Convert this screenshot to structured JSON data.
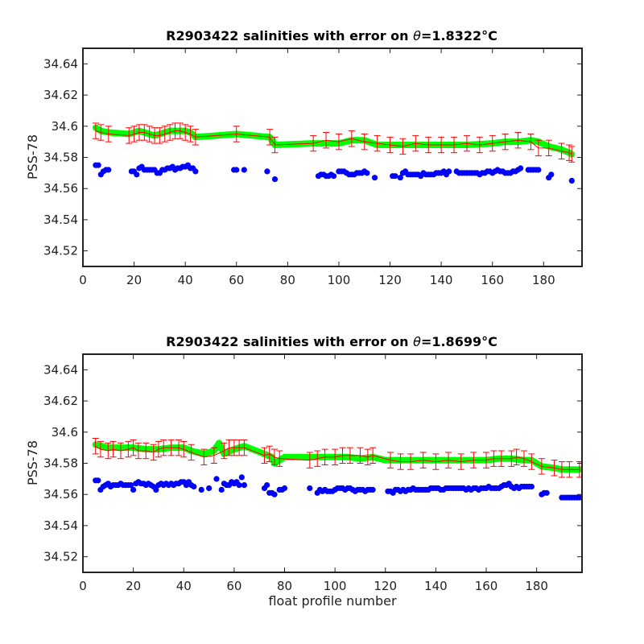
{
  "chart_data": [
    {
      "type": "scatter",
      "title_prefix": "R2903422 salinities with error on ",
      "title_theta": "θ",
      "title_value": "=1.8322",
      "title_unit": "°C",
      "xlabel": "",
      "ylabel": "PSS-78",
      "xlim": [
        0,
        195
      ],
      "ylim": [
        34.51,
        34.65
      ],
      "xticks": [
        "0",
        "20",
        "40",
        "60",
        "80",
        "100",
        "120",
        "140",
        "160",
        "180"
      ],
      "yticks": [
        "34.52",
        "34.54",
        "34.56",
        "34.58",
        "34.6",
        "34.62",
        "34.64"
      ],
      "grid": false,
      "series": [
        {
          "role": "float-salinity",
          "color": "#0000ff",
          "x": [
            5,
            6,
            7,
            8,
            9,
            10,
            19,
            20,
            21,
            22,
            23,
            24,
            25,
            26,
            27,
            28,
            29,
            30,
            31,
            32,
            33,
            34,
            35,
            36,
            37,
            38,
            39,
            40,
            41,
            42,
            43,
            44,
            59,
            60,
            63,
            72,
            75,
            92,
            93,
            94,
            95,
            96,
            97,
            98,
            100,
            101,
            102,
            103,
            104,
            105,
            106,
            107,
            108,
            109,
            110,
            111,
            114,
            121,
            122,
            124,
            125,
            126,
            127,
            128,
            129,
            130,
            131,
            132,
            133,
            134,
            135,
            136,
            137,
            138,
            139,
            140,
            141,
            142,
            143,
            146,
            147,
            148,
            149,
            150,
            151,
            152,
            153,
            154,
            155,
            156,
            157,
            158,
            159,
            160,
            161,
            162,
            163,
            164,
            165,
            166,
            167,
            168,
            169,
            170,
            171,
            174,
            175,
            176,
            177,
            178,
            182,
            183,
            191
          ],
          "y": [
            34.575,
            34.575,
            34.569,
            34.571,
            34.572,
            34.572,
            34.571,
            34.571,
            34.569,
            34.573,
            34.574,
            34.572,
            34.572,
            34.572,
            34.572,
            34.572,
            34.57,
            34.57,
            34.572,
            34.572,
            34.573,
            34.573,
            34.574,
            34.572,
            34.573,
            34.573,
            34.574,
            34.574,
            34.575,
            34.573,
            34.573,
            34.571,
            34.572,
            34.572,
            34.572,
            34.571,
            34.566,
            34.568,
            34.569,
            34.569,
            34.568,
            34.568,
            34.569,
            34.568,
            34.571,
            34.571,
            34.571,
            34.57,
            34.569,
            34.569,
            34.569,
            34.57,
            34.57,
            34.57,
            34.571,
            34.57,
            34.567,
            34.568,
            34.568,
            34.567,
            34.57,
            34.571,
            34.569,
            34.569,
            34.569,
            34.569,
            34.569,
            34.568,
            34.57,
            34.569,
            34.569,
            34.569,
            34.569,
            34.57,
            34.57,
            34.57,
            34.571,
            34.569,
            34.571,
            34.571,
            34.57,
            34.57,
            34.57,
            34.57,
            34.57,
            34.57,
            34.57,
            34.57,
            34.569,
            34.57,
            34.57,
            34.571,
            34.571,
            34.57,
            34.571,
            34.572,
            34.571,
            34.571,
            34.57,
            34.57,
            34.57,
            34.571,
            34.571,
            34.572,
            34.573,
            34.572,
            34.572,
            34.572,
            34.572,
            34.572,
            34.567,
            34.569,
            34.565
          ]
        },
        {
          "role": "mapped-salinity",
          "color": "#00ff00",
          "x": [
            5,
            7,
            10,
            18,
            20,
            22,
            24,
            26,
            28,
            30,
            32,
            34,
            36,
            38,
            40,
            42,
            44,
            60,
            73,
            75,
            90,
            100,
            105,
            110,
            115,
            120,
            130,
            140,
            150,
            160,
            165,
            170,
            175,
            178,
            182,
            187,
            190,
            191
          ],
          "y": [
            34.599,
            34.597,
            34.596,
            34.595,
            34.596,
            34.597,
            34.596,
            34.595,
            34.594,
            34.595,
            34.596,
            34.597,
            34.597,
            34.597,
            34.597,
            34.596,
            34.593,
            34.595,
            34.593,
            34.588,
            34.589,
            34.589,
            34.591,
            34.591,
            34.588,
            34.588,
            34.588,
            34.588,
            34.588,
            34.589,
            34.59,
            34.59,
            34.591,
            34.59,
            34.587,
            34.585,
            34.583,
            34.582
          ]
        },
        {
          "role": "calibrated-salinity",
          "color": "#ff0000",
          "errorbar": 0.005,
          "x": [
            5,
            7,
            10,
            18,
            20,
            22,
            24,
            26,
            28,
            30,
            32,
            34,
            36,
            38,
            40,
            42,
            44,
            60,
            73,
            75,
            90,
            95,
            100,
            105,
            110,
            115,
            120,
            125,
            130,
            135,
            140,
            145,
            150,
            155,
            160,
            165,
            170,
            175,
            178,
            182,
            187,
            190,
            191
          ],
          "y": [
            34.597,
            34.596,
            34.595,
            34.594,
            34.595,
            34.596,
            34.596,
            34.595,
            34.594,
            34.594,
            34.595,
            34.596,
            34.597,
            34.597,
            34.596,
            34.595,
            34.593,
            34.595,
            34.593,
            34.588,
            34.589,
            34.591,
            34.59,
            34.592,
            34.59,
            34.589,
            34.588,
            34.587,
            34.589,
            34.588,
            34.588,
            34.588,
            34.589,
            34.588,
            34.589,
            34.59,
            34.591,
            34.59,
            34.586,
            34.586,
            34.584,
            34.583,
            34.582
          ]
        }
      ]
    },
    {
      "type": "scatter",
      "title_prefix": "R2903422 salinities with error on ",
      "title_theta": "θ",
      "title_value": "=1.8699",
      "title_unit": "°C",
      "xlabel": "float profile number",
      "ylabel": "PSS-78",
      "xlim": [
        0,
        198
      ],
      "ylim": [
        34.51,
        34.65
      ],
      "xticks": [
        "0",
        "20",
        "40",
        "60",
        "80",
        "100",
        "120",
        "140",
        "160",
        "180"
      ],
      "yticks": [
        "34.52",
        "34.54",
        "34.56",
        "34.58",
        "34.6",
        "34.62",
        "34.64"
      ],
      "grid": false,
      "series": [
        {
          "role": "float-salinity",
          "color": "#0000ff",
          "x": [
            5,
            6,
            7,
            8,
            9,
            10,
            11,
            12,
            13,
            14,
            15,
            16,
            17,
            18,
            19,
            20,
            21,
            22,
            23,
            24,
            25,
            26,
            27,
            28,
            29,
            30,
            31,
            32,
            33,
            34,
            35,
            36,
            37,
            38,
            39,
            40,
            41,
            42,
            43,
            44,
            47,
            50,
            53,
            55,
            56,
            57,
            58,
            59,
            60,
            61,
            62,
            63,
            64,
            72,
            73,
            74,
            75,
            76,
            78,
            79,
            80,
            90,
            93,
            94,
            95,
            96,
            97,
            98,
            99,
            100,
            101,
            102,
            103,
            104,
            105,
            106,
            107,
            108,
            109,
            110,
            111,
            112,
            113,
            114,
            115,
            121,
            122,
            123,
            124,
            125,
            126,
            127,
            128,
            129,
            130,
            131,
            132,
            133,
            134,
            135,
            136,
            137,
            138,
            139,
            140,
            141,
            142,
            143,
            144,
            145,
            146,
            147,
            148,
            149,
            150,
            151,
            152,
            153,
            154,
            155,
            156,
            157,
            158,
            159,
            160,
            161,
            162,
            163,
            164,
            165,
            166,
            167,
            168,
            169,
            170,
            171,
            172,
            173,
            174,
            175,
            176,
            177,
            178,
            182,
            183,
            184,
            190,
            191,
            192,
            193,
            194,
            195,
            196,
            197
          ],
          "y": [
            34.569,
            34.569,
            34.563,
            34.565,
            34.566,
            34.567,
            34.565,
            34.566,
            34.566,
            34.566,
            34.567,
            34.566,
            34.566,
            34.566,
            34.566,
            34.563,
            34.567,
            34.568,
            34.567,
            34.567,
            34.566,
            34.567,
            34.566,
            34.565,
            34.563,
            34.566,
            34.567,
            34.566,
            34.567,
            34.566,
            34.567,
            34.566,
            34.567,
            34.567,
            34.568,
            34.568,
            34.566,
            34.568,
            34.566,
            34.565,
            34.563,
            34.564,
            34.57,
            34.563,
            34.567,
            34.566,
            34.566,
            34.568,
            34.567,
            34.568,
            34.566,
            34.571,
            34.566,
            34.564,
            34.566,
            34.561,
            34.561,
            34.56,
            34.563,
            34.563,
            34.564,
            34.564,
            34.561,
            34.563,
            34.562,
            34.563,
            34.562,
            34.562,
            34.562,
            34.563,
            34.564,
            34.564,
            34.564,
            34.563,
            34.564,
            34.564,
            34.563,
            34.562,
            34.563,
            34.563,
            34.563,
            34.562,
            34.563,
            34.563,
            34.563,
            34.562,
            34.562,
            34.561,
            34.563,
            34.563,
            34.562,
            34.563,
            34.562,
            34.563,
            34.563,
            34.564,
            34.563,
            34.563,
            34.563,
            34.563,
            34.563,
            34.563,
            34.564,
            34.564,
            34.564,
            34.564,
            34.563,
            34.563,
            34.564,
            34.564,
            34.564,
            34.564,
            34.564,
            34.564,
            34.564,
            34.564,
            34.563,
            34.564,
            34.563,
            34.564,
            34.564,
            34.563,
            34.564,
            34.564,
            34.564,
            34.565,
            34.564,
            34.564,
            34.564,
            34.564,
            34.565,
            34.566,
            34.566,
            34.567,
            34.565,
            34.564,
            34.565,
            34.564,
            34.565,
            34.565,
            34.565,
            34.565,
            34.565,
            34.56,
            34.561,
            34.561,
            34.558,
            34.558,
            34.558,
            34.558,
            34.558,
            34.558,
            34.558,
            34.558
          ]
        },
        {
          "role": "mapped-salinity",
          "color": "#00ff00",
          "x": [
            5,
            10,
            15,
            20,
            25,
            30,
            35,
            40,
            43,
            48,
            52,
            54,
            56,
            60,
            64,
            72,
            75,
            76,
            80,
            90,
            100,
            105,
            110,
            115,
            120,
            125,
            130,
            135,
            140,
            145,
            150,
            155,
            160,
            165,
            170,
            175,
            178,
            182,
            187,
            190,
            197
          ],
          "y": [
            34.592,
            34.59,
            34.59,
            34.59,
            34.589,
            34.589,
            34.59,
            34.59,
            34.588,
            34.586,
            34.588,
            34.593,
            34.586,
            34.589,
            34.591,
            34.586,
            34.584,
            34.58,
            34.584,
            34.584,
            34.584,
            34.584,
            34.583,
            34.584,
            34.582,
            34.582,
            34.582,
            34.582,
            34.582,
            34.582,
            34.582,
            34.582,
            34.582,
            34.583,
            34.583,
            34.582,
            34.582,
            34.578,
            34.577,
            34.576,
            34.576
          ]
        },
        {
          "role": "calibrated-salinity",
          "color": "#ff0000",
          "errorbar": 0.005,
          "x": [
            5,
            7,
            10,
            12,
            15,
            18,
            20,
            22,
            25,
            28,
            30,
            32,
            35,
            38,
            40,
            43,
            48,
            52,
            56,
            58,
            60,
            62,
            64,
            72,
            74,
            76,
            78,
            90,
            93,
            96,
            100,
            103,
            106,
            110,
            113,
            115,
            122,
            126,
            130,
            135,
            140,
            145,
            150,
            155,
            160,
            163,
            166,
            170,
            172,
            175,
            178,
            182,
            187,
            190,
            193,
            197
          ],
          "y": [
            34.591,
            34.589,
            34.588,
            34.589,
            34.588,
            34.589,
            34.59,
            34.588,
            34.588,
            34.587,
            34.589,
            34.59,
            34.59,
            34.59,
            34.589,
            34.587,
            34.584,
            34.585,
            34.588,
            34.59,
            34.59,
            34.59,
            34.59,
            34.585,
            34.586,
            34.584,
            34.583,
            34.582,
            34.583,
            34.584,
            34.584,
            34.585,
            34.585,
            34.585,
            34.584,
            34.585,
            34.582,
            34.581,
            34.581,
            34.582,
            34.581,
            34.582,
            34.581,
            34.582,
            34.582,
            34.583,
            34.583,
            34.583,
            34.584,
            34.583,
            34.581,
            34.578,
            34.577,
            34.576,
            34.576,
            34.576
          ]
        }
      ]
    }
  ]
}
